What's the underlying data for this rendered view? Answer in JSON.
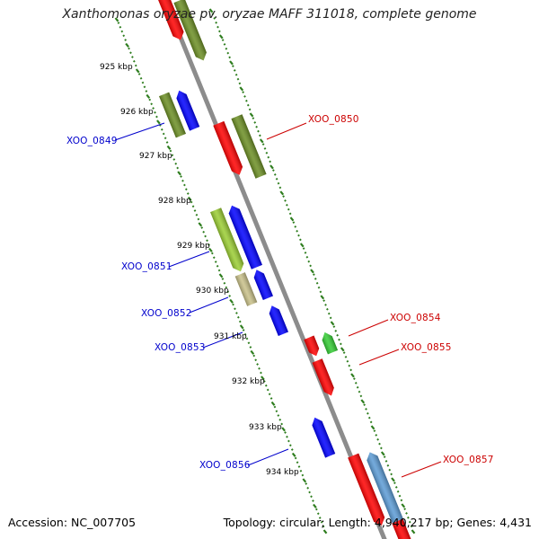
{
  "title": "Xanthomonas oryzae pv. oryzae MAFF 311018, complete genome",
  "accession_label": "Accession: NC_007705",
  "summary_label": "Topology: circular; Length: 4,940,217 bp; Genes: 4,431",
  "colors": {
    "backbone": "#8c8c8c",
    "tick_green": "#2e7d1e",
    "label_blue": "#0000cc",
    "label_red": "#cc0000",
    "gene_red": "#ff0000",
    "gene_olive": "#6b8e23",
    "gene_blue": "#0000ff",
    "gene_lightgreen": "#9acd32",
    "gene_khaki": "#c8c088",
    "gene_brightgreen": "#33cc33",
    "gene_steelblue": "#5b9bd5"
  },
  "kbp_labels": [
    "925 kbp",
    "926 kbp",
    "927 kbp",
    "928 kbp",
    "929 kbp",
    "930 kbp",
    "931 kbp",
    "932 kbp",
    "933 kbp",
    "934 kbp"
  ],
  "gene_labels": [
    {
      "text": "XOO_0849",
      "color": "blue"
    },
    {
      "text": "XOO_0850",
      "color": "red"
    },
    {
      "text": "XOO_0851",
      "color": "blue"
    },
    {
      "text": "XOO_0852",
      "color": "blue"
    },
    {
      "text": "XOO_0853",
      "color": "blue"
    },
    {
      "text": "XOO_0854",
      "color": "red"
    },
    {
      "text": "XOO_0855",
      "color": "red"
    },
    {
      "text": "XOO_0856",
      "color": "blue"
    },
    {
      "text": "XOO_0857",
      "color": "red"
    }
  ]
}
